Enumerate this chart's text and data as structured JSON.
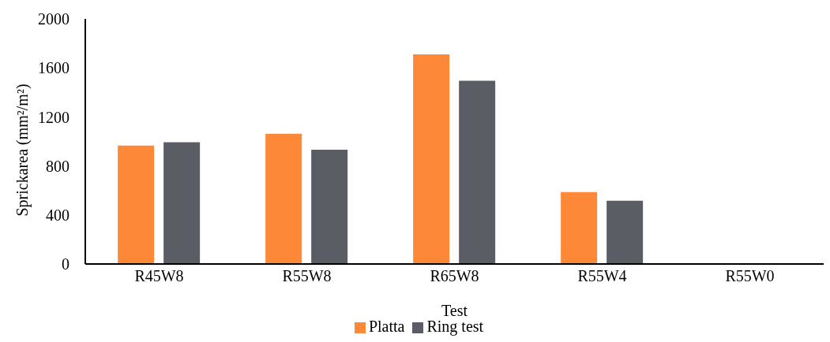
{
  "chart_data": {
    "type": "bar",
    "xlabel": "Test",
    "ylabel": "Sprickarea (mm²/m²)",
    "categories": [
      "R45W8",
      "R55W8",
      "R65W8",
      "R55W4",
      "R55W0"
    ],
    "series": [
      {
        "name": "Platta",
        "color": "#fd8838",
        "values": [
          967,
          1063,
          1711,
          587,
          0
        ]
      },
      {
        "name": "Ring test",
        "color": "#5a5d64",
        "values": [
          993,
          932,
          1495,
          516,
          0
        ]
      }
    ],
    "ylim": [
      0,
      2000
    ],
    "yticks": [
      0,
      400,
      800,
      1200,
      1600,
      2000
    ],
    "grid": false,
    "legend": "bottom"
  }
}
